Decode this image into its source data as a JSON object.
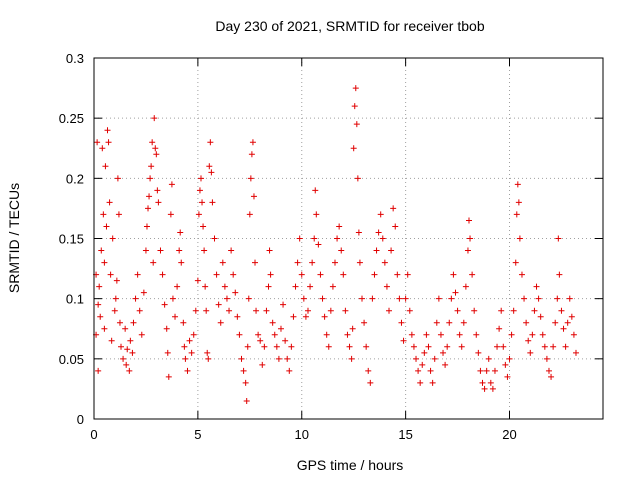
{
  "chart_data": {
    "type": "scatter",
    "title": "Day 230 of 2021, SRMTID for receiver tbob",
    "xlabel": "GPS time / hours",
    "ylabel": "SRMTID / TECUs",
    "xlim": [
      0,
      24.5
    ],
    "ylim": [
      0,
      0.3
    ],
    "xticks": [
      0,
      5,
      10,
      15,
      20
    ],
    "xtick_labels": [
      "0",
      "5",
      "10",
      "15",
      "20"
    ],
    "yticks": [
      0,
      0.05,
      0.1,
      0.15,
      0.2,
      0.25,
      0.3
    ],
    "ytick_labels": [
      "0",
      "0.05",
      "0.1",
      "0.15",
      "0.2",
      "0.25",
      "0.3"
    ],
    "grid": true,
    "marker": "+",
    "color": "#e00000",
    "series": [
      {
        "name": "SRMTID",
        "points": [
          [
            0.1,
            0.12
          ],
          [
            0.1,
            0.07
          ],
          [
            0.15,
            0.23
          ],
          [
            0.2,
            0.095
          ],
          [
            0.2,
            0.04
          ],
          [
            0.25,
            0.11
          ],
          [
            0.3,
            0.085
          ],
          [
            0.35,
            0.14
          ],
          [
            0.4,
            0.225
          ],
          [
            0.45,
            0.17
          ],
          [
            0.5,
            0.13
          ],
          [
            0.5,
            0.075
          ],
          [
            0.55,
            0.21
          ],
          [
            0.6,
            0.16
          ],
          [
            0.65,
            0.24
          ],
          [
            0.7,
            0.23
          ],
          [
            0.75,
            0.18
          ],
          [
            0.8,
            0.12
          ],
          [
            0.85,
            0.065
          ],
          [
            0.9,
            0.15
          ],
          [
            1.0,
            0.09
          ],
          [
            1.05,
            0.1
          ],
          [
            1.1,
            0.115
          ],
          [
            1.15,
            0.2
          ],
          [
            1.2,
            0.17
          ],
          [
            1.25,
            0.08
          ],
          [
            1.3,
            0.06
          ],
          [
            1.4,
            0.05
          ],
          [
            1.5,
            0.075
          ],
          [
            1.55,
            0.045
          ],
          [
            1.6,
            0.058
          ],
          [
            1.7,
            0.04
          ],
          [
            1.75,
            0.065
          ],
          [
            1.85,
            0.055
          ],
          [
            1.9,
            0.08
          ],
          [
            2.0,
            0.1
          ],
          [
            2.1,
            0.12
          ],
          [
            2.2,
            0.09
          ],
          [
            2.3,
            0.07
          ],
          [
            2.4,
            0.105
          ],
          [
            2.5,
            0.14
          ],
          [
            2.55,
            0.16
          ],
          [
            2.6,
            0.175
          ],
          [
            2.65,
            0.185
          ],
          [
            2.7,
            0.2
          ],
          [
            2.75,
            0.21
          ],
          [
            2.8,
            0.23
          ],
          [
            2.85,
            0.13
          ],
          [
            2.9,
            0.25
          ],
          [
            2.95,
            0.225
          ],
          [
            3.0,
            0.22
          ],
          [
            3.05,
            0.19
          ],
          [
            3.1,
            0.18
          ],
          [
            3.2,
            0.14
          ],
          [
            3.3,
            0.12
          ],
          [
            3.4,
            0.095
          ],
          [
            3.5,
            0.075
          ],
          [
            3.55,
            0.055
          ],
          [
            3.6,
            0.035
          ],
          [
            3.7,
            0.17
          ],
          [
            3.75,
            0.195
          ],
          [
            3.8,
            0.1
          ],
          [
            3.9,
            0.085
          ],
          [
            4.0,
            0.11
          ],
          [
            4.1,
            0.14
          ],
          [
            4.15,
            0.155
          ],
          [
            4.2,
            0.13
          ],
          [
            4.3,
            0.08
          ],
          [
            4.35,
            0.06
          ],
          [
            4.4,
            0.05
          ],
          [
            4.5,
            0.04
          ],
          [
            4.6,
            0.065
          ],
          [
            4.7,
            0.055
          ],
          [
            4.8,
            0.07
          ],
          [
            4.9,
            0.09
          ],
          [
            5.0,
            0.115
          ],
          [
            5.05,
            0.17
          ],
          [
            5.1,
            0.19
          ],
          [
            5.15,
            0.2
          ],
          [
            5.2,
            0.18
          ],
          [
            5.25,
            0.16
          ],
          [
            5.3,
            0.14
          ],
          [
            5.35,
            0.11
          ],
          [
            5.4,
            0.09
          ],
          [
            5.45,
            0.055
          ],
          [
            5.5,
            0.05
          ],
          [
            5.55,
            0.21
          ],
          [
            5.6,
            0.23
          ],
          [
            5.65,
            0.205
          ],
          [
            5.7,
            0.18
          ],
          [
            5.8,
            0.15
          ],
          [
            5.9,
            0.12
          ],
          [
            6.0,
            0.095
          ],
          [
            6.1,
            0.08
          ],
          [
            6.2,
            0.13
          ],
          [
            6.3,
            0.11
          ],
          [
            6.4,
            0.1
          ],
          [
            6.5,
            0.09
          ],
          [
            6.6,
            0.14
          ],
          [
            6.7,
            0.12
          ],
          [
            6.8,
            0.105
          ],
          [
            6.9,
            0.085
          ],
          [
            7.0,
            0.07
          ],
          [
            7.1,
            0.05
          ],
          [
            7.2,
            0.04
          ],
          [
            7.3,
            0.03
          ],
          [
            7.35,
            0.015
          ],
          [
            7.4,
            0.06
          ],
          [
            7.45,
            0.1
          ],
          [
            7.5,
            0.17
          ],
          [
            7.55,
            0.2
          ],
          [
            7.6,
            0.22
          ],
          [
            7.65,
            0.23
          ],
          [
            7.7,
            0.185
          ],
          [
            7.75,
            0.13
          ],
          [
            7.8,
            0.09
          ],
          [
            7.9,
            0.07
          ],
          [
            8.0,
            0.065
          ],
          [
            8.1,
            0.045
          ],
          [
            8.2,
            0.06
          ],
          [
            8.3,
            0.09
          ],
          [
            8.4,
            0.11
          ],
          [
            8.45,
            0.14
          ],
          [
            8.5,
            0.12
          ],
          [
            8.6,
            0.08
          ],
          [
            8.7,
            0.07
          ],
          [
            8.8,
            0.06
          ],
          [
            8.9,
            0.05
          ],
          [
            9.0,
            0.075
          ],
          [
            9.1,
            0.095
          ],
          [
            9.2,
            0.065
          ],
          [
            9.3,
            0.05
          ],
          [
            9.4,
            0.04
          ],
          [
            9.5,
            0.06
          ],
          [
            9.6,
            0.085
          ],
          [
            9.7,
            0.11
          ],
          [
            9.8,
            0.13
          ],
          [
            9.9,
            0.15
          ],
          [
            10.0,
            0.12
          ],
          [
            10.1,
            0.1
          ],
          [
            10.2,
            0.085
          ],
          [
            10.3,
            0.09
          ],
          [
            10.4,
            0.11
          ],
          [
            10.5,
            0.13
          ],
          [
            10.6,
            0.15
          ],
          [
            10.65,
            0.19
          ],
          [
            10.7,
            0.17
          ],
          [
            10.8,
            0.145
          ],
          [
            10.9,
            0.12
          ],
          [
            11.0,
            0.1
          ],
          [
            11.1,
            0.085
          ],
          [
            11.2,
            0.07
          ],
          [
            11.3,
            0.06
          ],
          [
            11.4,
            0.09
          ],
          [
            11.5,
            0.11
          ],
          [
            11.6,
            0.13
          ],
          [
            11.7,
            0.15
          ],
          [
            11.8,
            0.16
          ],
          [
            11.9,
            0.14
          ],
          [
            12.0,
            0.12
          ],
          [
            12.1,
            0.09
          ],
          [
            12.2,
            0.07
          ],
          [
            12.3,
            0.06
          ],
          [
            12.4,
            0.05
          ],
          [
            12.45,
            0.075
          ],
          [
            12.5,
            0.225
          ],
          [
            12.55,
            0.26
          ],
          [
            12.6,
            0.275
          ],
          [
            12.65,
            0.245
          ],
          [
            12.7,
            0.2
          ],
          [
            12.75,
            0.155
          ],
          [
            12.8,
            0.13
          ],
          [
            12.9,
            0.1
          ],
          [
            13.0,
            0.08
          ],
          [
            13.1,
            0.06
          ],
          [
            13.2,
            0.04
          ],
          [
            13.3,
            0.03
          ],
          [
            13.4,
            0.1
          ],
          [
            13.5,
            0.12
          ],
          [
            13.6,
            0.14
          ],
          [
            13.7,
            0.155
          ],
          [
            13.8,
            0.17
          ],
          [
            13.9,
            0.15
          ],
          [
            14.0,
            0.13
          ],
          [
            14.1,
            0.11
          ],
          [
            14.2,
            0.09
          ],
          [
            14.3,
            0.14
          ],
          [
            14.4,
            0.175
          ],
          [
            14.5,
            0.16
          ],
          [
            14.6,
            0.12
          ],
          [
            14.7,
            0.1
          ],
          [
            14.8,
            0.08
          ],
          [
            14.9,
            0.065
          ],
          [
            15.0,
            0.1
          ],
          [
            15.1,
            0.12
          ],
          [
            15.2,
            0.09
          ],
          [
            15.3,
            0.07
          ],
          [
            15.4,
            0.06
          ],
          [
            15.5,
            0.05
          ],
          [
            15.6,
            0.04
          ],
          [
            15.7,
            0.03
          ],
          [
            15.8,
            0.045
          ],
          [
            15.9,
            0.055
          ],
          [
            16.0,
            0.07
          ],
          [
            16.1,
            0.06
          ],
          [
            16.2,
            0.04
          ],
          [
            16.3,
            0.03
          ],
          [
            16.4,
            0.05
          ],
          [
            16.5,
            0.08
          ],
          [
            16.6,
            0.1
          ],
          [
            16.7,
            0.07
          ],
          [
            16.8,
            0.055
          ],
          [
            16.9,
            0.045
          ],
          [
            17.0,
            0.06
          ],
          [
            17.1,
            0.08
          ],
          [
            17.2,
            0.1
          ],
          [
            17.3,
            0.12
          ],
          [
            17.4,
            0.105
          ],
          [
            17.5,
            0.09
          ],
          [
            17.6,
            0.07
          ],
          [
            17.7,
            0.06
          ],
          [
            17.8,
            0.08
          ],
          [
            17.9,
            0.11
          ],
          [
            18.0,
            0.14
          ],
          [
            18.05,
            0.165
          ],
          [
            18.1,
            0.15
          ],
          [
            18.2,
            0.12
          ],
          [
            18.3,
            0.09
          ],
          [
            18.4,
            0.07
          ],
          [
            18.5,
            0.055
          ],
          [
            18.6,
            0.04
          ],
          [
            18.7,
            0.03
          ],
          [
            18.8,
            0.025
          ],
          [
            18.9,
            0.04
          ],
          [
            19.0,
            0.05
          ],
          [
            19.1,
            0.03
          ],
          [
            19.2,
            0.025
          ],
          [
            19.3,
            0.04
          ],
          [
            19.4,
            0.06
          ],
          [
            19.5,
            0.075
          ],
          [
            19.6,
            0.09
          ],
          [
            19.7,
            0.06
          ],
          [
            19.8,
            0.045
          ],
          [
            19.9,
            0.035
          ],
          [
            20.0,
            0.05
          ],
          [
            20.1,
            0.07
          ],
          [
            20.2,
            0.09
          ],
          [
            20.3,
            0.13
          ],
          [
            20.35,
            0.17
          ],
          [
            20.4,
            0.195
          ],
          [
            20.45,
            0.18
          ],
          [
            20.5,
            0.15
          ],
          [
            20.6,
            0.12
          ],
          [
            20.7,
            0.1
          ],
          [
            20.8,
            0.08
          ],
          [
            20.9,
            0.065
          ],
          [
            21.0,
            0.055
          ],
          [
            21.1,
            0.07
          ],
          [
            21.2,
            0.09
          ],
          [
            21.3,
            0.11
          ],
          [
            21.4,
            0.1
          ],
          [
            21.5,
            0.085
          ],
          [
            21.6,
            0.07
          ],
          [
            21.7,
            0.06
          ],
          [
            21.8,
            0.05
          ],
          [
            21.9,
            0.04
          ],
          [
            22.0,
            0.035
          ],
          [
            22.1,
            0.06
          ],
          [
            22.2,
            0.08
          ],
          [
            22.3,
            0.1
          ],
          [
            22.35,
            0.15
          ],
          [
            22.4,
            0.12
          ],
          [
            22.5,
            0.09
          ],
          [
            22.6,
            0.075
          ],
          [
            22.7,
            0.06
          ],
          [
            22.8,
            0.08
          ],
          [
            22.9,
            0.1
          ],
          [
            23.0,
            0.085
          ],
          [
            23.1,
            0.07
          ],
          [
            23.2,
            0.055
          ]
        ]
      }
    ]
  }
}
